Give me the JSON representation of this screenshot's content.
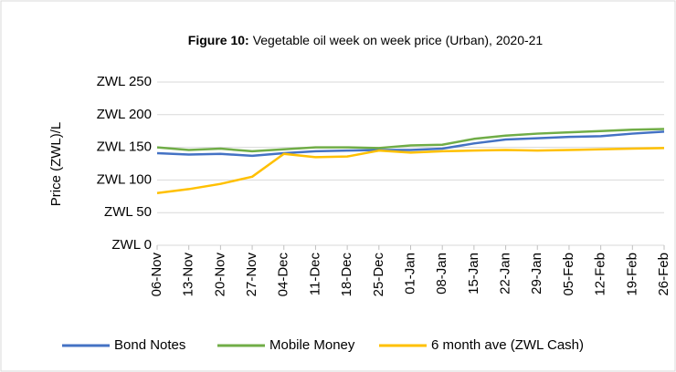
{
  "chart_data": {
    "type": "line",
    "figure_label": "Figure 10:",
    "title": "Vegetable oil week on week price (Urban), 2020-21",
    "y_label": "Price (ZWL)/L",
    "categories": [
      "06-Nov",
      "13-Nov",
      "20-Nov",
      "27-Nov",
      "04-Dec",
      "11-Dec",
      "18-Dec",
      "25-Dec",
      "01-Jan",
      "08-Jan",
      "15-Jan",
      "22-Jan",
      "29-Jan",
      "05-Feb",
      "12-Feb",
      "19-Feb",
      "26-Feb"
    ],
    "series": [
      {
        "name": "Bond Notes",
        "color": "#4472c4",
        "values": [
          141,
          139,
          140,
          137,
          141,
          144,
          145,
          146,
          146,
          148,
          156,
          162,
          164,
          166,
          167,
          171,
          174
        ]
      },
      {
        "name": "Mobile Money",
        "color": "#70ad47",
        "values": [
          150,
          146,
          148,
          144,
          147,
          150,
          150,
          149,
          153,
          154,
          163,
          168,
          171,
          173,
          175,
          177,
          178
        ]
      },
      {
        "name": "6 month ave (ZWL Cash)",
        "color": "#ffc000",
        "values": [
          80,
          86,
          94,
          105,
          140,
          135,
          136,
          145,
          142,
          144,
          145,
          146,
          145,
          146,
          147,
          148,
          149
        ]
      }
    ],
    "ylim": [
      0,
      250
    ],
    "yticks": [
      {
        "value": 0,
        "label": "ZWL 0"
      },
      {
        "value": 50,
        "label": "ZWL 50"
      },
      {
        "value": 100,
        "label": "ZWL 100"
      },
      {
        "value": 150,
        "label": "ZWL 150"
      },
      {
        "value": 200,
        "label": "ZWL 200"
      },
      {
        "value": 250,
        "label": "ZWL 250"
      }
    ],
    "grid": true,
    "legend": "bottom"
  }
}
